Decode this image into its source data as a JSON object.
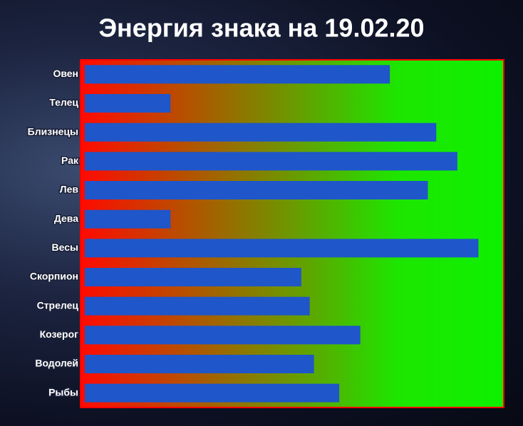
{
  "chart_data": {
    "type": "bar",
    "orientation": "horizontal",
    "title": "Энергия знака на 19.02.20",
    "categories": [
      "Овен",
      "Телец",
      "Близнецы",
      "Рак",
      "Лев",
      "Дева",
      "Весы",
      "Скорпион",
      "Стрелец",
      "Козерог",
      "Водолей",
      "Рыбы"
    ],
    "values": [
      73,
      21,
      84,
      89,
      82,
      21,
      94,
      52,
      54,
      66,
      55,
      61
    ],
    "color": "#1f56c9",
    "xlim": [
      0,
      100
    ]
  }
}
